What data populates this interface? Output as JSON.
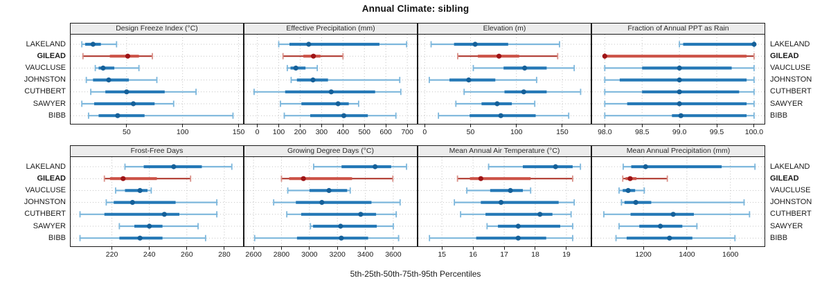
{
  "chart_data": {
    "type": "scatter",
    "style": "trellis dot plot with 5th-25th-50th-75th-95th percentile whiskers (lattice-style, 2 rows x 4 columns of panels)",
    "title": "Annual Climate: sibling",
    "xlabel": "5th-25th-50th-75th-95th Percentiles",
    "legend_position": "none",
    "grid": "dotted",
    "categories": [
      "LAKELAND",
      "GILEAD",
      "VAUCLUSE",
      "JOHNSTON",
      "CUTHBERT",
      "SAWYER",
      "BIBB"
    ],
    "highlight_category": "GILEAD",
    "highlight_scheme": "red",
    "percentile_order": [
      "p5",
      "p25",
      "p50",
      "p75",
      "p95"
    ],
    "panels": [
      {
        "title": "Design Freeze Index (°C)",
        "row": 1,
        "col": 1,
        "xlim": [
          0,
          154
        ],
        "tick_values": [
          50,
          100,
          150
        ],
        "tick_labels": [
          "50",
          "100",
          "150"
        ],
        "series": [
          {
            "name": "LAKELAND",
            "values": [
              10,
              13,
              20,
              27,
              41
            ]
          },
          {
            "name": "GILEAD",
            "values": [
              11,
              35,
              51,
              61,
              73
            ]
          },
          {
            "name": "VAUCLUSE",
            "values": [
              22,
              25,
              29,
              39,
              61
            ]
          },
          {
            "name": "JOHNSTON",
            "values": [
              14,
              20,
              34,
              52,
              77
            ]
          },
          {
            "name": "CUTHBERT",
            "values": [
              18,
              31,
              50,
              84,
              112
            ]
          },
          {
            "name": "SAWYER",
            "values": [
              10,
              21,
              56,
              75,
              92
            ]
          },
          {
            "name": "BIBB",
            "values": [
              16,
              25,
              42,
              66,
              145
            ]
          }
        ]
      },
      {
        "title": "Effective Precipitation (mm)",
        "row": 1,
        "col": 2,
        "xlim": [
          -60,
          745
        ],
        "tick_values": [
          0,
          100,
          200,
          300,
          400,
          500,
          600,
          700
        ],
        "tick_labels": [
          "0",
          "100",
          "200",
          "300",
          "400",
          "500",
          "600",
          "700"
        ],
        "series": [
          {
            "name": "LAKELAND",
            "values": [
              100,
              150,
              240,
              570,
              697
            ]
          },
          {
            "name": "GILEAD",
            "values": [
              120,
              215,
              262,
              295,
              400
            ]
          },
          {
            "name": "VAUCLUSE",
            "values": [
              140,
              155,
              180,
              225,
              280
            ]
          },
          {
            "name": "JOHNSTON",
            "values": [
              158,
              185,
              260,
              330,
              665
            ]
          },
          {
            "name": "CUTHBERT",
            "values": [
              -15,
              130,
              345,
              550,
              670
            ]
          },
          {
            "name": "SAWYER",
            "values": [
              108,
              206,
              377,
              427,
              473
            ]
          },
          {
            "name": "BIBB",
            "values": [
              126,
              247,
              404,
              516,
              647
            ]
          }
        ]
      },
      {
        "title": "Elevation (m)",
        "row": 1,
        "col": 3,
        "xlim": [
          -7,
          181
        ],
        "tick_values": [
          0,
          50,
          100,
          150
        ],
        "tick_labels": [
          "0",
          "50",
          "100",
          "150"
        ],
        "series": [
          {
            "name": "LAKELAND",
            "values": [
              7,
              32,
              55,
              91,
              147
            ]
          },
          {
            "name": "GILEAD",
            "values": [
              36,
              58,
              81,
              103,
              145
            ]
          },
          {
            "name": "VAUCLUSE",
            "values": [
              53,
              86,
              109,
              133,
              163
            ]
          },
          {
            "name": "JOHNSTON",
            "values": [
              5,
              27,
              48,
              77,
              122
            ]
          },
          {
            "name": "CUTHBERT",
            "values": [
              43,
              87,
              108,
              133,
              170
            ]
          },
          {
            "name": "SAWYER",
            "values": [
              34,
              62,
              79,
              95,
              120
            ]
          },
          {
            "name": "BIBB",
            "values": [
              15,
              49,
              83,
              121,
              157
            ]
          }
        ]
      },
      {
        "title": "Fraction of Annual PPT as Rain",
        "row": 1,
        "col": 4,
        "xlim": [
          97.83,
          100.14
        ],
        "tick_values": [
          98.0,
          98.5,
          99.0,
          99.5,
          100.0
        ],
        "tick_labels": [
          "98.0",
          "98.5",
          "99.0",
          "99.5",
          "100.0"
        ],
        "series": [
          {
            "name": "LAKELAND",
            "values": [
              99.0,
              99.05,
              100.0,
              100.0,
              100.0
            ]
          },
          {
            "name": "GILEAD",
            "values": [
              98.0,
              98.0,
              98.0,
              99.9,
              100.0
            ]
          },
          {
            "name": "VAUCLUSE",
            "values": [
              98.0,
              98.5,
              99.0,
              99.7,
              100.0
            ]
          },
          {
            "name": "JOHNSTON",
            "values": [
              98.0,
              98.2,
              99.0,
              99.9,
              100.0
            ]
          },
          {
            "name": "CUTHBERT",
            "values": [
              98.0,
              98.5,
              99.0,
              99.8,
              100.0
            ]
          },
          {
            "name": "SAWYER",
            "values": [
              98.0,
              98.3,
              99.0,
              99.9,
              100.0
            ]
          },
          {
            "name": "BIBB",
            "values": [
              98.0,
              98.9,
              99.02,
              99.9,
              100.0
            ]
          }
        ]
      },
      {
        "title": "Frost-Free Days",
        "row": 2,
        "col": 1,
        "xlim": [
          198,
          290
        ],
        "tick_values": [
          220,
          240,
          260,
          280
        ],
        "tick_labels": [
          "220",
          "240",
          "260",
          "280"
        ],
        "series": [
          {
            "name": "LAKELAND",
            "values": [
              227,
              237,
              253,
              268,
              284
            ]
          },
          {
            "name": "GILEAD",
            "values": [
              216,
              219,
              226,
              244,
              262
            ]
          },
          {
            "name": "VAUCLUSE",
            "values": [
              222,
              227,
              235,
              239,
              241
            ]
          },
          {
            "name": "JOHNSTON",
            "values": [
              217,
              221,
              231,
              254,
              276
            ]
          },
          {
            "name": "CUTHBERT",
            "values": [
              203,
              216,
              248,
              256,
              276
            ]
          },
          {
            "name": "SAWYER",
            "values": [
              224,
              232,
              240,
              247,
              266
            ]
          },
          {
            "name": "BIBB",
            "values": [
              203,
              224,
              235,
              247,
              270
            ]
          }
        ]
      },
      {
        "title": "Growing Degree Days (°C)",
        "row": 2,
        "col": 2,
        "xlim": [
          2535,
          3769
        ],
        "tick_values": [
          2600,
          2800,
          3000,
          3200,
          3400,
          3600
        ],
        "tick_labels": [
          "2600",
          "2800",
          "3000",
          "3200",
          "3400",
          "3600"
        ],
        "series": [
          {
            "name": "LAKELAND",
            "values": [
              3030,
              3230,
              3470,
              3585,
              3695
            ]
          },
          {
            "name": "GILEAD",
            "values": [
              2800,
              2855,
              2957,
              3305,
              3597
            ]
          },
          {
            "name": "VAUCLUSE",
            "values": [
              2845,
              3000,
              3140,
              3270,
              3292
            ]
          },
          {
            "name": "JOHNSTON",
            "values": [
              2744,
              2903,
              3089,
              3444,
              3649
            ]
          },
          {
            "name": "CUTHBERT",
            "values": [
              2838,
              2941,
              3367,
              3477,
              3621
            ]
          },
          {
            "name": "SAWYER",
            "values": [
              3007,
              3026,
              3223,
              3482,
              3600
            ]
          },
          {
            "name": "BIBB",
            "values": [
              2608,
              2911,
              3228,
              3420,
              3638
            ]
          }
        ]
      },
      {
        "title": "Mean Annual Air Temperature (°C)",
        "row": 2,
        "col": 3,
        "xlim": [
          14.24,
          19.78
        ],
        "tick_values": [
          15,
          16,
          17,
          18,
          19
        ],
        "tick_labels": [
          "15",
          "16",
          "17",
          "18",
          "19"
        ],
        "series": [
          {
            "name": "LAKELAND",
            "values": [
              16.5,
              17.6,
              18.65,
              19.2,
              19.45
            ]
          },
          {
            "name": "GILEAD",
            "values": [
              15.5,
              15.9,
              16.25,
              17.85,
              19.2
            ]
          },
          {
            "name": "VAUCLUSE",
            "values": [
              15.8,
              16.55,
              17.2,
              17.6,
              17.85
            ]
          },
          {
            "name": "JOHNSTON",
            "values": [
              15.4,
              16.25,
              16.9,
              18.75,
              19.25
            ]
          },
          {
            "name": "CUTHBERT",
            "values": [
              15.6,
              16.4,
              18.15,
              18.55,
              19.15
            ]
          },
          {
            "name": "SAWYER",
            "values": [
              16.45,
              16.8,
              17.45,
              18.8,
              19.2
            ]
          },
          {
            "name": "BIBB",
            "values": [
              14.6,
              16.1,
              17.45,
              18.35,
              19.2
            ]
          }
        ]
      },
      {
        "title": "Mean Annual Precipitation (mm)",
        "row": 2,
        "col": 4,
        "xlim": [
          964,
          1757
        ],
        "tick_values": [
          1200,
          1400,
          1600
        ],
        "tick_labels": [
          "1200",
          "1400",
          "1600"
        ],
        "series": [
          {
            "name": "LAKELAND",
            "values": [
              1107,
              1144,
              1210,
              1560,
              1713
            ]
          },
          {
            "name": "GILEAD",
            "values": [
              1105,
              1118,
              1139,
              1168,
              1310
            ]
          },
          {
            "name": "VAUCLUSE",
            "values": [
              1088,
              1105,
              1130,
              1162,
              1204
            ]
          },
          {
            "name": "JOHNSTON",
            "values": [
              1099,
              1113,
              1165,
              1236,
              1663
            ]
          },
          {
            "name": "CUTHBERT",
            "values": [
              1018,
              1141,
              1337,
              1432,
              1688
            ]
          },
          {
            "name": "SAWYER",
            "values": [
              1088,
              1181,
              1278,
              1379,
              1446
            ]
          },
          {
            "name": "BIBB",
            "values": [
              1074,
              1123,
              1320,
              1425,
              1621
            ]
          }
        ]
      }
    ],
    "colors": {
      "blue_line": "#7db7dc",
      "blue_band": "#2478b6",
      "blue_dot": "#156099",
      "red_line": "#b03a30",
      "red_band": "#cc5247",
      "red_dot": "#9e1416",
      "red_cap": "#d98f87",
      "grid": "#c4c4c4",
      "panel_header_bg": "#ececec",
      "panel_border": "#1a1a1a",
      "text": "#1a1a1a"
    }
  }
}
